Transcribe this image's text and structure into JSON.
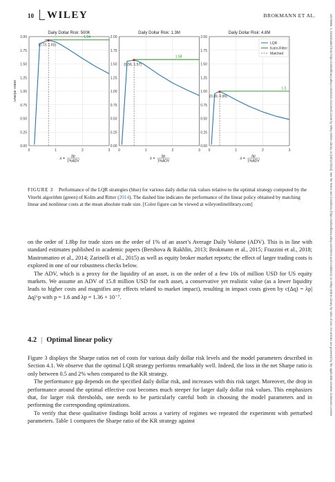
{
  "header": {
    "page_number": "10",
    "publisher_logo": "WILEY",
    "running_head": "BROKMANN ET AL."
  },
  "side_note": "14679965, 0, Downloaded from https://onlinelibrary.wiley.com/doi/10.1111/mafi.12446 by Wiley Online Library on [08/12/2024]. See the Terms and Conditions (https://onlinelibrary.wiley.com/terms-and-conditions) on Wiley Online Library for rules of use; OA articles are governed by the applicable Creative Commons License",
  "chart_data": [
    {
      "type": "line",
      "title": "Daily Dollar Risk: 500K",
      "ylabel": "Sharpe Ratio",
      "xlabel": "λ = bp / 1%ADV",
      "xlim": [
        0,
        3
      ],
      "ylim": [
        0,
        2.0
      ],
      "xticks": [
        "0",
        "1",
        "2",
        "3"
      ],
      "yticks": [
        "0.00",
        "0.25",
        "0.50",
        "0.75",
        "1.00",
        "1.25",
        "1.50",
        "1.75",
        "2.00"
      ],
      "grid": true,
      "series": [
        {
          "name": "LQR",
          "color": "#1f77b4",
          "x": [
            0.2,
            0.4,
            0.6,
            0.73,
            0.85,
            1.0,
            1.2,
            1.5,
            2.0,
            2.5,
            3.0
          ],
          "y": [
            0.02,
            1.87,
            1.91,
            1.93,
            1.92,
            1.9,
            1.85,
            1.76,
            1.6,
            1.45,
            1.32
          ]
        },
        {
          "name": "Kolm-Ritter",
          "color": "#2ca02c",
          "x": [
            0.6,
            3.0
          ],
          "y": [
            1.94,
            1.94
          ]
        },
        {
          "name": "Matched",
          "color": "#7f7f7f",
          "dashed": true,
          "x": [
            0.73,
            0.73
          ],
          "y": [
            0,
            1.93
          ]
        }
      ],
      "annotations": [
        {
          "text": "(0.73, 1.93)",
          "x": 0.73,
          "y": 1.93
        },
        {
          "text": "1.94",
          "x": 2.05,
          "y": 1.94
        }
      ]
    },
    {
      "type": "line",
      "title": "Daily Dollar Risk: 1.3M",
      "xlabel": "λ = bp / 1%ADV",
      "xlim": [
        0,
        3
      ],
      "ylim": [
        0,
        2.0
      ],
      "xticks": [
        "0",
        "1",
        "2",
        "3"
      ],
      "yticks": [
        "0.00",
        "0.25",
        "0.50",
        "0.75",
        "1.00",
        "1.25",
        "1.50",
        "1.75",
        "2.00"
      ],
      "grid": true,
      "series": [
        {
          "name": "LQR",
          "color": "#1f77b4",
          "x": [
            0.1,
            0.3,
            0.45,
            0.56,
            0.7,
            0.9,
            1.2,
            1.5,
            2.0,
            2.5,
            3.0
          ],
          "y": [
            0.02,
            1.55,
            1.56,
            1.57,
            1.55,
            1.5,
            1.4,
            1.3,
            1.15,
            1.03,
            0.92
          ]
        },
        {
          "name": "Kolm-Ritter",
          "color": "#2ca02c",
          "x": [
            0.5,
            3.0
          ],
          "y": [
            1.58,
            1.58
          ]
        },
        {
          "name": "Matched",
          "color": "#7f7f7f",
          "dashed": true,
          "x": [
            0.56,
            0.56
          ],
          "y": [
            0,
            1.57
          ]
        }
      ],
      "annotations": [
        {
          "text": "(0.56, 1.57)",
          "x": 0.56,
          "y": 1.57
        },
        {
          "text": "1.58",
          "x": 2.1,
          "y": 1.58
        }
      ]
    },
    {
      "type": "line",
      "title": "Daily Dollar Risk: 4.8M",
      "xlabel": "λ = bp / 1%ADV",
      "xlim": [
        0,
        3
      ],
      "ylim": [
        0,
        2.0
      ],
      "xticks": [
        "0",
        "1",
        "2",
        "3"
      ],
      "yticks": [
        "0.00",
        "0.25",
        "0.50",
        "0.75",
        "1.00",
        "1.25",
        "1.50",
        "1.75",
        "2.00"
      ],
      "grid": true,
      "legend": "top-right",
      "series": [
        {
          "name": "LQR",
          "color": "#1f77b4",
          "x": [
            0.08,
            0.2,
            0.3,
            0.39,
            0.5,
            0.7,
            1.0,
            1.5,
            2.0,
            2.5,
            3.0
          ],
          "y": [
            0.02,
            0.95,
            0.98,
            0.99,
            0.97,
            0.92,
            0.84,
            0.72,
            0.62,
            0.54,
            0.48
          ]
        },
        {
          "name": "Kolm-Ritter",
          "color": "#2ca02c",
          "x": [
            0.35,
            3.0
          ],
          "y": [
            1.0,
            1.0
          ]
        },
        {
          "name": "Matched",
          "color": "#7f7f7f",
          "dashed": true,
          "x": [
            0.39,
            0.39
          ],
          "y": [
            0,
            0.99
          ]
        }
      ],
      "annotations": [
        {
          "text": "(0.39, 0.99)",
          "x": 0.39,
          "y": 0.99
        },
        {
          "text": "1.0",
          "x": 2.7,
          "y": 1.0
        }
      ]
    }
  ],
  "caption": {
    "label": "FIGURE 3",
    "text_before": "Performance of the LQR strategies (blue) for various daily dollar risk values relative to the optimal strategy computed by the Viterbi algorithm (green) of Kolm and Ritter (",
    "cite": "2014",
    "text_after": "). The dashed line indicates the performance of the linear policy obtained by matching linear and nonlinear costs at the mean absolute trade size. [Color figure can be viewed at wileyonlinelibrary.com]"
  },
  "para1": "on the order of 1.8bp for trade sizes on the order of 1% of an asset’s Average Daily Volume (ADV). This is in line with standard estimates published in academic papers (Bershova & Rakhlin, 2013; Brokmann et al., 2015; Frazzini et al., 2018; Mastromatteo et al., 2014; Zarinelli et al., 2015) as well as equity broker market reports; the effect of larger trading costs is explored in one of our robustness checks below.",
  "para2": "The ADV, which is a proxy for the liquidity of an asset, is on the order of a few 10s of million USD for US equity markets. We assume an ADV of 15.8 million USD for each asset, a conservative yet realistic value (as a lower liquidity leads to higher costs and magnifies any effects related to market impact), resulting in impact costs given by c(Δq) = λp|Δq|^p with p = 1.6 and λp = 1.36 × 10⁻⁷.",
  "section": {
    "number": "4.2",
    "title": "Optimal linear policy"
  },
  "para3": "Figure 3 displays the Sharpe ratios net of costs for various daily dollar risk levels and the model parameters described in Section 4.1. We observe that the optimal LQR strategy performs remarkably well. Indeed, the loss in the net Sharpe ratio is only between 0.5 and 2% when compared to the KR strategy.",
  "para4": "The performance gap depends on the specified daily dollar risk, and increases with this risk target. Moreover, the drop in performance around the optimal effective cost becomes much steeper for larger daily dollar risk values. This emphasizes that, for larger risk thresholds, one needs to be particularly careful both in choosing the model parameters and in performing the corresponding optimizations.",
  "para5": "To verify that these qualitative findings hold across a variety of regimes we repeated the experiment with perturbed parameters. Table 1 compares the Sharpe ratio of the KR strategy against"
}
